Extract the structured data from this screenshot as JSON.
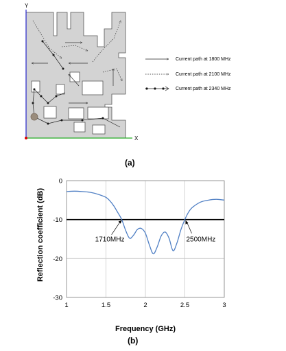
{
  "antenna_figure": {
    "panel_label": "(a)",
    "axis_y_label": "Y",
    "axis_x_label": "X",
    "legend": [
      {
        "label": "Current path at 1800 MHz",
        "style": "solid-arrow"
      },
      {
        "label": "Current path at 2100 MHz",
        "style": "dotted-arrow"
      },
      {
        "label": "Current path at 2340 MHz",
        "style": "dot-line"
      }
    ],
    "colors": {
      "patch": "#d3d3d3",
      "outline": "#555555",
      "y_axis": "#3333cc",
      "x_axis": "#22aa22",
      "origin": "#dd0000",
      "feed": "#9a8c7c"
    }
  },
  "reflection_figure": {
    "panel_label": "(b)",
    "annotations": [
      {
        "text": "1710MHz",
        "x": 1.71,
        "y": -10
      },
      {
        "text": "2500MHz",
        "x": 2.5,
        "y": -10
      }
    ],
    "colors": {
      "curve": "#4f7fc4",
      "threshold": "#000000",
      "grid": "#c8c8c8"
    }
  },
  "chart_data": {
    "type": "line",
    "title": "",
    "xlabel": "Frequency (GHz)",
    "ylabel": "Reflection coefficient (dB)",
    "xlim": [
      1,
      3
    ],
    "ylim": [
      -30,
      0
    ],
    "xticks": [
      "1",
      "1.5",
      "2",
      "2.5",
      "3"
    ],
    "yticks": [
      "0",
      "-10",
      "-20",
      "-30"
    ],
    "grid": true,
    "threshold": -10,
    "series": [
      {
        "x": [
          1.0,
          1.1,
          1.2,
          1.3,
          1.4,
          1.5,
          1.55,
          1.6,
          1.65,
          1.7,
          1.75,
          1.8,
          1.85,
          1.9,
          1.95,
          2.0,
          2.05,
          2.1,
          2.15,
          2.2,
          2.25,
          2.3,
          2.35,
          2.4,
          2.45,
          2.5,
          2.55,
          2.6,
          2.7,
          2.8,
          2.9,
          3.0
        ],
        "y": [
          -2.8,
          -2.7,
          -2.8,
          -3.0,
          -3.5,
          -4.3,
          -5.2,
          -6.5,
          -8.2,
          -10.0,
          -12.8,
          -14.8,
          -14.0,
          -12.5,
          -12.3,
          -13.5,
          -16.5,
          -18.8,
          -17.0,
          -14.2,
          -13.2,
          -14.8,
          -18.0,
          -16.0,
          -12.6,
          -10.0,
          -8.0,
          -6.8,
          -5.5,
          -5.0,
          -4.8,
          -5.0
        ]
      }
    ]
  }
}
